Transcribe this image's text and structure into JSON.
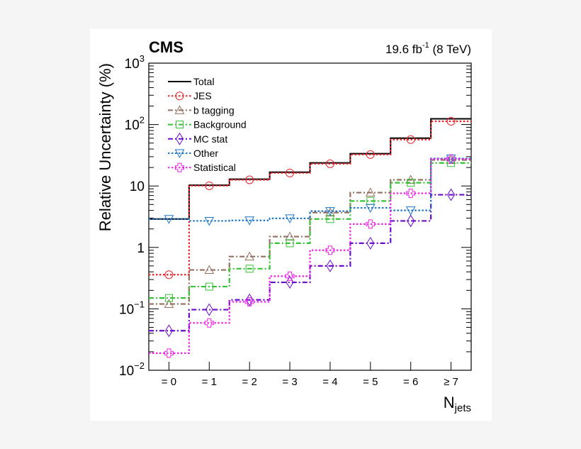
{
  "chart_data": {
    "type": "line",
    "step": true,
    "title": "CMS",
    "subtitle": "19.6 fb-1 (8 TeV)",
    "lumi_value": "19.6 fb",
    "lumi_exp": "-1",
    "lumi_energy": "(8 TeV)",
    "xlabel": "N",
    "xlabel_sub": "jets",
    "ylabel": "Relative Uncertainty (%)",
    "yscale": "log",
    "ylim": [
      0.01,
      1000
    ],
    "ytick_labels": [
      {
        "base": "10",
        "exp": "3"
      },
      {
        "base": "10",
        "exp": "2"
      },
      {
        "base": "10",
        "exp": ""
      },
      {
        "base": "1",
        "exp": ""
      },
      {
        "base": "10",
        "exp": "−1"
      },
      {
        "base": "10",
        "exp": "−2"
      }
    ],
    "categories": [
      "= 0",
      "= 1",
      "= 2",
      "= 3",
      "= 4",
      "= 5",
      "= 6",
      "≥ 7"
    ],
    "legend_position": "top-left",
    "series": [
      {
        "name": "Total",
        "color": "#000000",
        "dash": "solid",
        "marker": "none",
        "values": [
          2.9,
          10.3,
          12.9,
          16.8,
          23.8,
          33.6,
          60,
          124
        ]
      },
      {
        "name": "JES",
        "color": "#e8242a",
        "dash": "dotted",
        "marker": "circle",
        "values": [
          0.36,
          10.1,
          12.6,
          16.3,
          23,
          32.5,
          57,
          113
        ]
      },
      {
        "name": "b tagging",
        "color": "#957062",
        "dash": "dashdot",
        "marker": "triangle-up",
        "values": [
          0.12,
          0.43,
          0.71,
          1.5,
          3.7,
          7.8,
          12.6,
          26.5
        ]
      },
      {
        "name": "Background",
        "color": "#36c236",
        "dash": "dashdot",
        "marker": "square",
        "values": [
          0.15,
          0.23,
          0.45,
          1.17,
          2.9,
          5.7,
          11.3,
          23.7
        ]
      },
      {
        "name": "MC stat",
        "color": "#6a0dc8",
        "dash": "dashdot",
        "marker": "diamond",
        "values": [
          0.044,
          0.097,
          0.14,
          0.27,
          0.5,
          1.17,
          2.7,
          7.2
        ]
      },
      {
        "name": "Other",
        "color": "#1f75c8",
        "dash": "dotted",
        "marker": "triangle-down",
        "values": [
          2.9,
          2.7,
          2.75,
          2.97,
          3.9,
          4.4,
          4.0,
          28
        ]
      },
      {
        "name": "Statistical",
        "color": "#ec24e6",
        "dash": "dotted",
        "marker": "cross",
        "values": [
          0.019,
          0.059,
          0.13,
          0.34,
          0.9,
          2.4,
          7.6,
          27.5
        ]
      }
    ]
  }
}
